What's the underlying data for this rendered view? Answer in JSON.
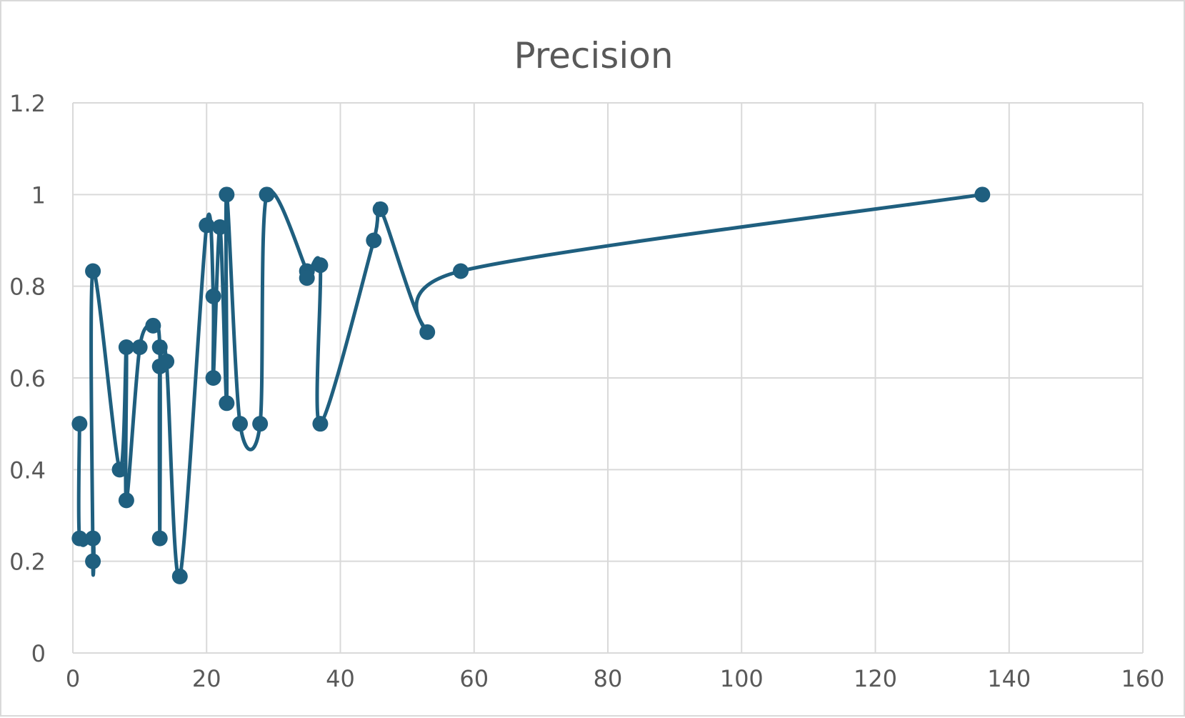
{
  "chart_data": {
    "type": "scatter",
    "title": "Precision",
    "xlabel": "",
    "ylabel": "",
    "xlim": [
      0,
      160
    ],
    "ylim": [
      0,
      1.2
    ],
    "x_ticks": [
      "0",
      "20",
      "40",
      "60",
      "80",
      "100",
      "120",
      "140",
      "160"
    ],
    "y_ticks": [
      "0",
      "0.2",
      "0.4",
      "0.6",
      "0.8",
      "1",
      "1.2"
    ],
    "grid": true,
    "legend": "none",
    "line_style": "smooth",
    "markers": true,
    "series_color": "#1f5f7f",
    "series": [
      {
        "points": [
          [
            1,
            0.5
          ],
          [
            1,
            0.25
          ],
          [
            3,
            0.25
          ],
          [
            3,
            0.2
          ],
          [
            3,
            0.833
          ],
          [
            7,
            0.4
          ],
          [
            8,
            0.667
          ],
          [
            8,
            0.333
          ],
          [
            10,
            0.667
          ],
          [
            12,
            0.714
          ],
          [
            13,
            0.667
          ],
          [
            13,
            0.25
          ],
          [
            13,
            0.625
          ],
          [
            14,
            0.636
          ],
          [
            16,
            0.167
          ],
          [
            20,
            0.933
          ],
          [
            21,
            0.778
          ],
          [
            21,
            0.6
          ],
          [
            22,
            0.929
          ],
          [
            23,
            0.545
          ],
          [
            23,
            1.0
          ],
          [
            25,
            0.5
          ],
          [
            28,
            0.5
          ],
          [
            29,
            1.0
          ],
          [
            35,
            0.833
          ],
          [
            35,
            0.818
          ],
          [
            37,
            0.846
          ],
          [
            37,
            0.5
          ],
          [
            45,
            0.9
          ],
          [
            46,
            0.968
          ],
          [
            53,
            0.7
          ],
          [
            58,
            0.833
          ],
          [
            136,
            1.0
          ]
        ]
      }
    ]
  }
}
